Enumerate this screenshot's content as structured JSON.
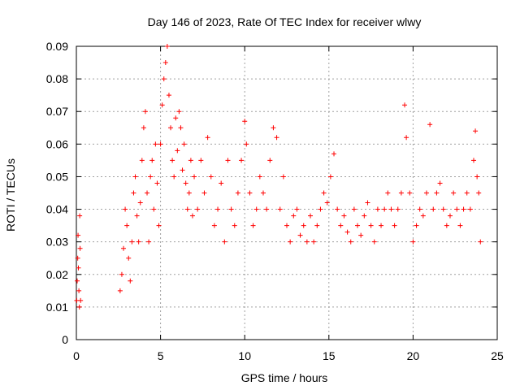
{
  "chart_data": {
    "type": "scatter",
    "title": "Day 146 of 2023, Rate Of TEC Index for receiver wlwy",
    "xlabel": "GPS time / hours",
    "ylabel": "ROTI / TECUs",
    "xlim": [
      0,
      25
    ],
    "ylim": [
      0,
      0.09
    ],
    "x_ticks": [
      0,
      5,
      10,
      15,
      20,
      25
    ],
    "x_tick_labels": [
      "0",
      "5",
      "10",
      "15",
      "20",
      "25"
    ],
    "y_ticks": [
      0,
      0.01,
      0.02,
      0.03,
      0.04,
      0.05,
      0.06,
      0.07,
      0.08,
      0.09
    ],
    "y_tick_labels": [
      "0",
      "0.01",
      "0.02",
      "0.03",
      "0.04",
      "0.05",
      "0.06",
      "0.07",
      "0.08",
      "0.09"
    ],
    "grid": true,
    "marker": "+",
    "series_color": "#ff0000",
    "series": [
      {
        "name": "",
        "points": [
          [
            0.02,
            0.012
          ],
          [
            0.05,
            0.018
          ],
          [
            0.08,
            0.025
          ],
          [
            0.1,
            0.032
          ],
          [
            0.12,
            0.022
          ],
          [
            0.15,
            0.015
          ],
          [
            0.18,
            0.01
          ],
          [
            0.2,
            0.038
          ],
          [
            0.22,
            0.028
          ],
          [
            0.25,
            0.012
          ],
          [
            2.6,
            0.015
          ],
          [
            2.7,
            0.02
          ],
          [
            2.8,
            0.028
          ],
          [
            2.9,
            0.04
          ],
          [
            3.0,
            0.035
          ],
          [
            3.1,
            0.025
          ],
          [
            3.2,
            0.018
          ],
          [
            3.3,
            0.03
          ],
          [
            3.4,
            0.045
          ],
          [
            3.5,
            0.05
          ],
          [
            3.6,
            0.038
          ],
          [
            3.7,
            0.03
          ],
          [
            3.8,
            0.042
          ],
          [
            3.9,
            0.055
          ],
          [
            4.0,
            0.065
          ],
          [
            4.1,
            0.07
          ],
          [
            4.2,
            0.045
          ],
          [
            4.3,
            0.03
          ],
          [
            4.4,
            0.05
          ],
          [
            4.5,
            0.055
          ],
          [
            4.6,
            0.04
          ],
          [
            4.7,
            0.06
          ],
          [
            4.8,
            0.048
          ],
          [
            4.9,
            0.035
          ],
          [
            5.0,
            0.06
          ],
          [
            5.1,
            0.072
          ],
          [
            5.2,
            0.08
          ],
          [
            5.3,
            0.085
          ],
          [
            5.4,
            0.09
          ],
          [
            5.5,
            0.075
          ],
          [
            5.6,
            0.065
          ],
          [
            5.7,
            0.055
          ],
          [
            5.8,
            0.05
          ],
          [
            5.9,
            0.068
          ],
          [
            6.0,
            0.058
          ],
          [
            6.1,
            0.07
          ],
          [
            6.2,
            0.065
          ],
          [
            6.3,
            0.052
          ],
          [
            6.4,
            0.06
          ],
          [
            6.5,
            0.048
          ],
          [
            6.6,
            0.04
          ],
          [
            6.7,
            0.045
          ],
          [
            6.8,
            0.055
          ],
          [
            6.9,
            0.038
          ],
          [
            7.0,
            0.05
          ],
          [
            7.2,
            0.04
          ],
          [
            7.4,
            0.055
          ],
          [
            7.6,
            0.045
          ],
          [
            7.8,
            0.062
          ],
          [
            8.0,
            0.05
          ],
          [
            8.2,
            0.035
          ],
          [
            8.4,
            0.04
          ],
          [
            8.6,
            0.048
          ],
          [
            8.8,
            0.03
          ],
          [
            9.0,
            0.055
          ],
          [
            9.2,
            0.04
          ],
          [
            9.4,
            0.035
          ],
          [
            9.6,
            0.045
          ],
          [
            9.8,
            0.055
          ],
          [
            10.0,
            0.067
          ],
          [
            10.1,
            0.06
          ],
          [
            10.3,
            0.045
          ],
          [
            10.5,
            0.035
          ],
          [
            10.7,
            0.04
          ],
          [
            10.9,
            0.05
          ],
          [
            11.1,
            0.045
          ],
          [
            11.3,
            0.04
          ],
          [
            11.5,
            0.055
          ],
          [
            11.7,
            0.065
          ],
          [
            11.9,
            0.062
          ],
          [
            12.1,
            0.04
          ],
          [
            12.3,
            0.05
          ],
          [
            12.5,
            0.035
          ],
          [
            12.7,
            0.03
          ],
          [
            12.9,
            0.038
          ],
          [
            13.1,
            0.04
          ],
          [
            13.3,
            0.032
          ],
          [
            13.5,
            0.035
          ],
          [
            13.7,
            0.03
          ],
          [
            13.9,
            0.038
          ],
          [
            14.1,
            0.03
          ],
          [
            14.3,
            0.035
          ],
          [
            14.5,
            0.04
          ],
          [
            14.7,
            0.045
          ],
          [
            14.9,
            0.042
          ],
          [
            15.1,
            0.05
          ],
          [
            15.3,
            0.057
          ],
          [
            15.5,
            0.04
          ],
          [
            15.7,
            0.035
          ],
          [
            15.9,
            0.038
          ],
          [
            16.1,
            0.033
          ],
          [
            16.3,
            0.03
          ],
          [
            16.5,
            0.04
          ],
          [
            16.7,
            0.035
          ],
          [
            16.9,
            0.032
          ],
          [
            17.1,
            0.038
          ],
          [
            17.3,
            0.042
          ],
          [
            17.5,
            0.035
          ],
          [
            17.7,
            0.03
          ],
          [
            17.9,
            0.04
          ],
          [
            18.1,
            0.035
          ],
          [
            18.3,
            0.04
          ],
          [
            18.5,
            0.045
          ],
          [
            18.7,
            0.04
          ],
          [
            18.9,
            0.035
          ],
          [
            19.1,
            0.04
          ],
          [
            19.3,
            0.045
          ],
          [
            19.5,
            0.072
          ],
          [
            19.6,
            0.062
          ],
          [
            19.8,
            0.045
          ],
          [
            20.0,
            0.03
          ],
          [
            20.2,
            0.035
          ],
          [
            20.4,
            0.04
          ],
          [
            20.6,
            0.038
          ],
          [
            20.8,
            0.045
          ],
          [
            21.0,
            0.066
          ],
          [
            21.2,
            0.04
          ],
          [
            21.4,
            0.045
          ],
          [
            21.6,
            0.048
          ],
          [
            21.8,
            0.04
          ],
          [
            22.0,
            0.035
          ],
          [
            22.2,
            0.038
          ],
          [
            22.4,
            0.045
          ],
          [
            22.6,
            0.04
          ],
          [
            22.8,
            0.035
          ],
          [
            23.0,
            0.04
          ],
          [
            23.2,
            0.045
          ],
          [
            23.4,
            0.04
          ],
          [
            23.6,
            0.055
          ],
          [
            23.7,
            0.064
          ],
          [
            23.8,
            0.05
          ],
          [
            23.9,
            0.045
          ],
          [
            24.0,
            0.03
          ]
        ]
      }
    ]
  }
}
